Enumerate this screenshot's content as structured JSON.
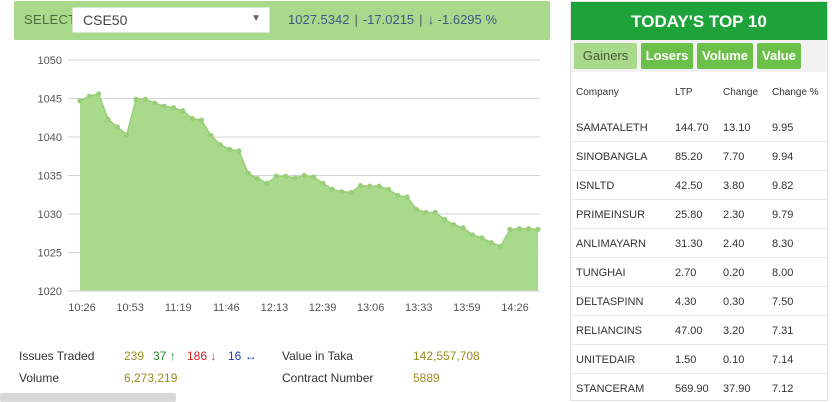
{
  "selector": {
    "label": "SELECT",
    "value": "CSE50",
    "index_value": "1027.5342",
    "change": "-17.0215",
    "change_pct": "↓ -1.6295 %"
  },
  "chart_data": {
    "type": "area",
    "title": "",
    "xlabel": "",
    "ylabel": "",
    "ylim": [
      1020,
      1050
    ],
    "yticks": [
      1020,
      1025,
      1030,
      1035,
      1040,
      1045,
      1050
    ],
    "ytick_labels": [
      "1020",
      "1025",
      "1030",
      "1035",
      "1040",
      "1045",
      "1050"
    ],
    "xtick_labels": [
      "10:26",
      "10:53",
      "11:19",
      "11:46",
      "12:13",
      "12:39",
      "13:06",
      "13:33",
      "13:59",
      "14:26"
    ],
    "grid": true,
    "color": "#a9d98a",
    "values": [
      1044.7,
      1045.3,
      1045.6,
      1042.3,
      1041.3,
      1040.3,
      1044.9,
      1044.9,
      1044.4,
      1044.0,
      1043.8,
      1043.4,
      1042.4,
      1042.2,
      1040.2,
      1039.0,
      1038.4,
      1038.2,
      1035.3,
      1034.6,
      1034.0,
      1034.9,
      1034.9,
      1034.7,
      1035.0,
      1034.8,
      1034.0,
      1033.2,
      1032.9,
      1032.8,
      1033.7,
      1033.6,
      1033.6,
      1033.2,
      1032.4,
      1032.2,
      1030.6,
      1030.2,
      1030.2,
      1029.3,
      1028.6,
      1028.2,
      1027.3,
      1026.9,
      1026.3,
      1025.8,
      1028.0,
      1028.1,
      1028.1,
      1028.0
    ]
  },
  "summary": {
    "issues_label": "Issues Traded",
    "issues_total": "239",
    "advanced": "37",
    "declined": "186",
    "unchanged": "16",
    "volume_label": "Volume",
    "volume": "6,273,219",
    "value_label": "Value in Taka",
    "value": "142,557,708",
    "contract_label": "Contract Number",
    "contracts": "5889"
  },
  "top10": {
    "title": "TODAY'S TOP 10",
    "tabs": [
      "Gainers",
      "Losers",
      "Volume",
      "Value"
    ],
    "columns": [
      "Company",
      "LTP",
      "Change",
      "Change %"
    ],
    "rows": [
      [
        "SAMATALETH",
        "144.70",
        "13.10",
        "9.95"
      ],
      [
        "SINOBANGLA",
        "85.20",
        "7.70",
        "9.94"
      ],
      [
        "ISNLTD",
        "42.50",
        "3.80",
        "9.82"
      ],
      [
        "PRIMEINSUR",
        "25.80",
        "2.30",
        "9.79"
      ],
      [
        "ANLIMAYARN",
        "31.30",
        "2.40",
        "8.30"
      ],
      [
        "TUNGHAI",
        "2.70",
        "0.20",
        "8.00"
      ],
      [
        "DELTASPINN",
        "4.30",
        "0.30",
        "7.50"
      ],
      [
        "RELIANCINS",
        "47.00",
        "3.20",
        "7.31"
      ],
      [
        "UNITEDAIR",
        "1.50",
        "0.10",
        "7.14"
      ],
      [
        "STANCERAM",
        "569.90",
        "37.90",
        "7.12"
      ]
    ]
  }
}
